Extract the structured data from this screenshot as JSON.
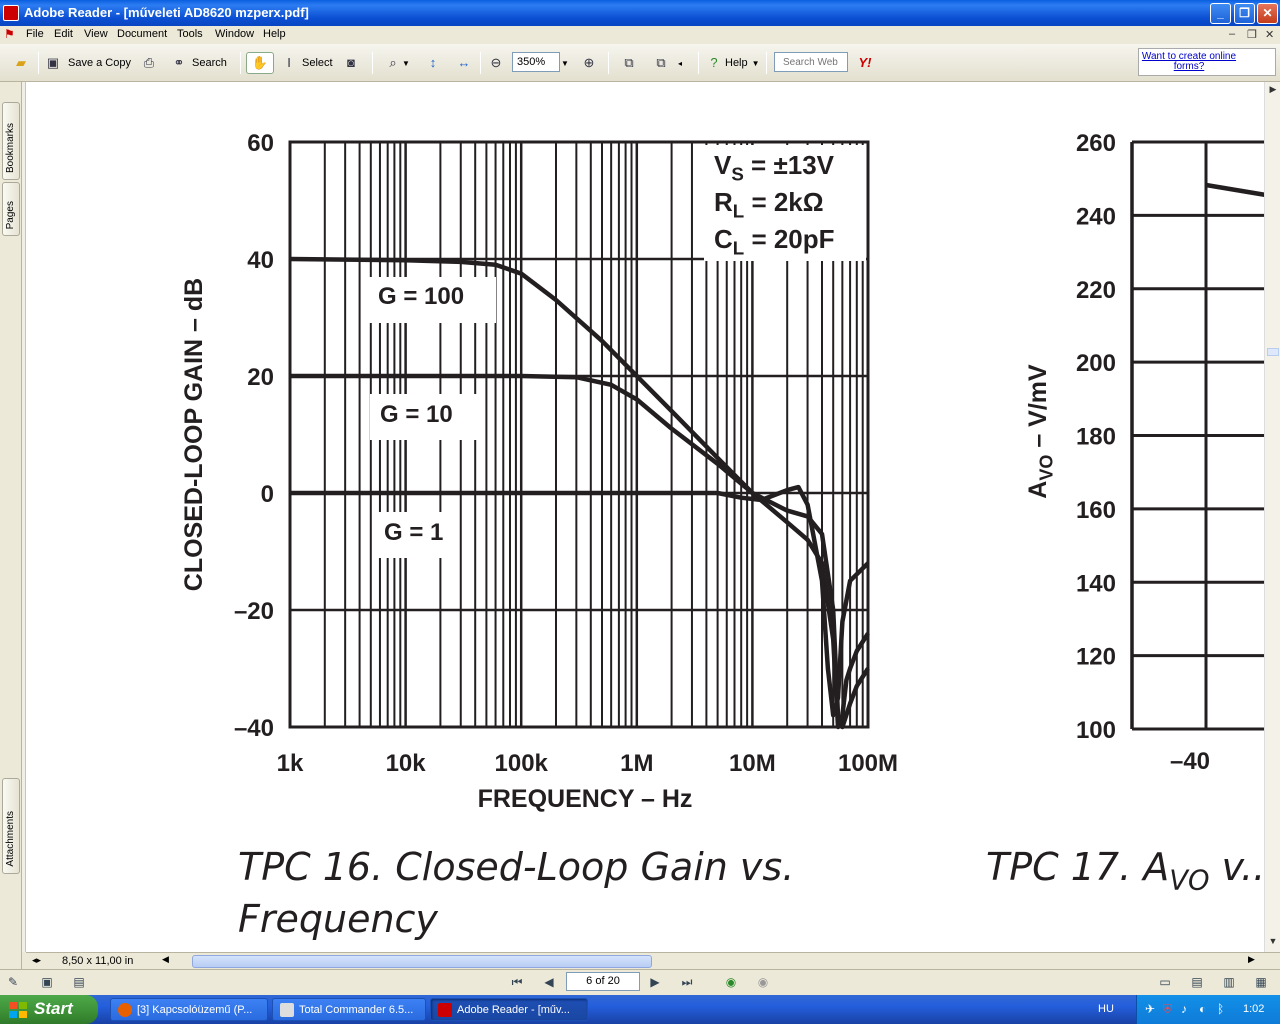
{
  "window": {
    "title": "Adobe Reader - [műveleti AD8620 mzperx.pdf]"
  },
  "menu": [
    "File",
    "Edit",
    "View",
    "Document",
    "Tools",
    "Window",
    "Help"
  ],
  "toolbar": {
    "save_copy": "Save a Copy",
    "search": "Search",
    "select": "Select",
    "zoom_value": "350%",
    "help": "Help",
    "search_web_placeholder": "Search Web",
    "online_forms": "Want to create online forms?"
  },
  "nav_tabs": {
    "bookmarks": "Bookmarks",
    "pages": "Pages",
    "attachments": "Attachments"
  },
  "hbar": {
    "page_size": "8,50 x 11,00 in"
  },
  "status": {
    "page_indicator": "6 of 20"
  },
  "taskbar": {
    "start": "Start",
    "tasks": [
      "[3] Kapcsolóüzemű (P...",
      "Total Commander 6.5...",
      "Adobe Reader - [műv..."
    ],
    "lang": "HU",
    "clock": "1:02"
  },
  "chart_data": [
    {
      "type": "line",
      "ylabel": "CLOSED-LOOP GAIN – dB",
      "xlabel": "FREQUENCY – Hz",
      "x_scale": "log",
      "xlim": [
        1000,
        100000000
      ],
      "ylim": [
        -40,
        60
      ],
      "x_ticks": [
        "1k",
        "10k",
        "100k",
        "1M",
        "10M",
        "100M"
      ],
      "y_ticks": [
        "60",
        "40",
        "20",
        "0",
        "–20",
        "–40"
      ],
      "grid": true,
      "annotation": {
        "line1_main": "V",
        "line1_sub": "S",
        "line1_rest": " = ±13V",
        "line2_main": "R",
        "line2_sub": "L",
        "line2_rest": " = 2kΩ",
        "line3_main": "C",
        "line3_sub": "L",
        "line3_rest": " = 20pF"
      },
      "series": [
        {
          "name": "G = 100",
          "x": [
            1000,
            10000,
            30000,
            60000,
            100000,
            200000,
            500000,
            1000000,
            2000000,
            5000000,
            10000000,
            20000000,
            30000000,
            40000000,
            50000000,
            55000000,
            60000000,
            65000000,
            70000000,
            80000000,
            100000000
          ],
          "y": [
            40,
            39.8,
            39.5,
            39,
            37.5,
            33,
            26,
            20,
            14,
            6,
            0,
            -5,
            -8,
            -12,
            -25,
            -40,
            -38,
            -32,
            -30,
            -27,
            -24
          ]
        },
        {
          "name": "G = 10",
          "x": [
            1000,
            10000,
            100000,
            300000,
            600000,
            1000000,
            2000000,
            5000000,
            10000000,
            20000000,
            30000000,
            40000000,
            50000000,
            55000000,
            60000000,
            70000000,
            80000000,
            100000000
          ],
          "y": [
            20,
            20,
            20,
            19.8,
            18.5,
            16,
            11,
            5,
            0,
            -3,
            -4,
            -7,
            -20,
            -38,
            -40,
            -36,
            -33,
            -30
          ]
        },
        {
          "name": "G = 1",
          "x": [
            1000,
            10000,
            100000,
            1000000,
            5000000,
            8000000,
            12000000,
            20000000,
            25000000,
            30000000,
            40000000,
            45000000,
            50000000,
            55000000,
            60000000,
            70000000,
            100000000
          ],
          "y": [
            0,
            0,
            0,
            0,
            0,
            -0.8,
            -1.2,
            0.5,
            1,
            -2,
            -15,
            -30,
            -38,
            -35,
            -22,
            -15,
            -12
          ]
        }
      ],
      "curve_labels": [
        "G = 100",
        "G = 10",
        "G = 1"
      ],
      "caption_line1": "TPC 16.  Closed-Loop Gain vs.",
      "caption_line2": "Frequency"
    },
    {
      "type": "line",
      "ylabel_main": "A",
      "ylabel_sub": "VO",
      "ylabel_rest": " – V/mV",
      "ylim": [
        100,
        260
      ],
      "y_ticks": [
        "260",
        "240",
        "220",
        "200",
        "180",
        "160",
        "140",
        "120",
        "100"
      ],
      "x_ticks_visible": [
        "–40"
      ],
      "grid": true,
      "caption_main": "TPC 17.  A",
      "caption_sub": "VO",
      "caption_rest": " v..."
    }
  ]
}
